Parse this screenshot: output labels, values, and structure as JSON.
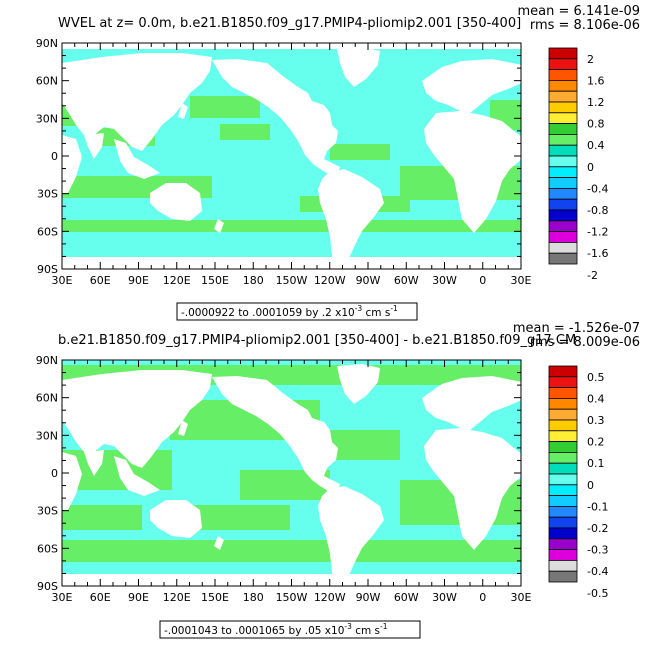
{
  "chart_data": [
    {
      "type": "heatmap",
      "title": "WVEL at z=    0.0m, b.e21.B1850.f09_g17.PMIP4-pliomip2.001 [350-400]",
      "stats": {
        "mean": "mean = 6.141e-09",
        "rms": "rms = 8.106e-06"
      },
      "range_note": "-.0000922 to .0001059 by .2 x10",
      "range_exp": "-3",
      "range_unit_pre": "cm s",
      "range_unit_exp": "-1",
      "x_ticks": [
        "30E",
        "60E",
        "90E",
        "120E",
        "150E",
        "180",
        "150W",
        "120W",
        "90W",
        "60W",
        "30W",
        "0",
        "30E"
      ],
      "y_ticks": [
        "90N",
        "60N",
        "30N",
        "0",
        "30S",
        "60S",
        "90S"
      ],
      "colorbar": {
        "labels": [
          "2",
          "1.6",
          "1.2",
          "0.8",
          "0.4",
          "0",
          "-0.4",
          "-0.8",
          "-1.2",
          "-1.6",
          "-2"
        ],
        "colors": [
          "#cc0000",
          "#ee1111",
          "#ff5500",
          "#ff8800",
          "#ffaa33",
          "#ffcc00",
          "#ffee33",
          "#33cc33",
          "#66ee66",
          "#00ddbb",
          "#66ffee",
          "#00eeff",
          "#11ccff",
          "#2288ff",
          "#1144ee",
          "#0000cc",
          "#9900cc",
          "#dd00dd",
          "#dddddd",
          "#777777"
        ]
      },
      "field": {
        "dominant_positive": "#66ee66",
        "dominant_negative": "#66ffee"
      }
    },
    {
      "type": "heatmap",
      "title": "b.e21.B1850.f09_g17.PMIP4-pliomip2.001 [350-400] - b.e21.B1850.f09_g17.CM",
      "stats": {
        "mean": "mean = -1.526e-07",
        "rms": "rms = 8.009e-06"
      },
      "range_note": "-.0001043 to .0001065 by .05 x10",
      "range_exp": "-3",
      "range_unit_pre": "cm s",
      "range_unit_exp": "-1",
      "x_ticks": [
        "30E",
        "60E",
        "90E",
        "120E",
        "150E",
        "180",
        "150W",
        "120W",
        "90W",
        "60W",
        "30W",
        "0",
        "30E"
      ],
      "y_ticks": [
        "90N",
        "60N",
        "30N",
        "0",
        "30S",
        "60S",
        "90S"
      ],
      "colorbar": {
        "labels": [
          "0.5",
          "0.4",
          "0.3",
          "0.2",
          "0.1",
          "0",
          "-0.1",
          "-0.2",
          "-0.3",
          "-0.4",
          "-0.5"
        ],
        "colors": [
          "#cc0000",
          "#ee1111",
          "#ff5500",
          "#ff8800",
          "#ffaa33",
          "#ffcc00",
          "#ffee33",
          "#33cc33",
          "#66ee66",
          "#00ddbb",
          "#66ffee",
          "#00eeff",
          "#11ccff",
          "#2288ff",
          "#1144ee",
          "#0000cc",
          "#9900cc",
          "#dd00dd",
          "#dddddd",
          "#777777"
        ]
      },
      "field": {
        "dominant_positive": "#66ee66",
        "dominant_negative": "#66ffee"
      }
    }
  ]
}
